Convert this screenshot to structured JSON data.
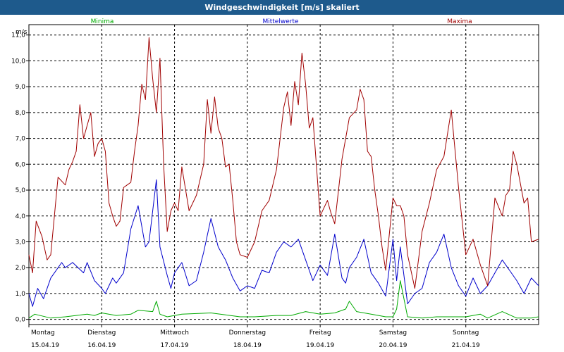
{
  "window": {
    "title": "Windgeschwindigkeit [m/s] skaliert"
  },
  "colors": {
    "titlebar": "#1e5a8c",
    "min": "#00aa00",
    "mean": "#0000cc",
    "max": "#a00000",
    "grid": "#000000"
  },
  "chart_data": {
    "type": "line",
    "title": "Windgeschwindigkeit [m/s] skaliert",
    "ylabel": "m/s",
    "ylim": [
      -0.2,
      11.4
    ],
    "xlim": [
      0,
      7
    ],
    "yticks": [
      0,
      1,
      2,
      3,
      4,
      5,
      6,
      7,
      8,
      9,
      10,
      11
    ],
    "ytick_labels": [
      "0,0",
      "1,0",
      "2,0",
      "3,0",
      "4,0",
      "5,0",
      "6,0",
      "7,0",
      "8,0",
      "9,0",
      "10,0",
      "11,0"
    ],
    "xticks": [
      {
        "day": "Montag",
        "date": "15.04.19"
      },
      {
        "day": "Dienstag",
        "date": "16.04.19"
      },
      {
        "day": "Mittwoch",
        "date": "17.04.19"
      },
      {
        "day": "Donnerstag",
        "date": "18.04.19"
      },
      {
        "day": "Freitag",
        "date": "19.04.19"
      },
      {
        "day": "Samstag",
        "date": "20.04.19"
      },
      {
        "day": "Sonntag",
        "date": "21.04.19"
      }
    ],
    "grid": true,
    "legend_position": "top",
    "series": [
      {
        "name": "Minima",
        "color": "#00aa00",
        "x": [
          0,
          0.08,
          0.3,
          0.5,
          0.8,
          0.9,
          1.0,
          1.2,
          1.4,
          1.5,
          1.7,
          1.75,
          1.8,
          1.9,
          2.1,
          2.5,
          2.9,
          3.1,
          3.4,
          3.6,
          3.8,
          4.0,
          4.2,
          4.35,
          4.4,
          4.5,
          4.7,
          4.9,
          5.0,
          5.05,
          5.1,
          5.2,
          5.4,
          5.6,
          6.0,
          6.2,
          6.3,
          6.5,
          6.7,
          6.9,
          7.0
        ],
        "y": [
          0.05,
          0.2,
          0.05,
          0.1,
          0.2,
          0.15,
          0.25,
          0.15,
          0.2,
          0.35,
          0.3,
          0.7,
          0.2,
          0.1,
          0.2,
          0.25,
          0.1,
          0.1,
          0.15,
          0.15,
          0.3,
          0.2,
          0.25,
          0.4,
          0.7,
          0.3,
          0.2,
          0.1,
          0.1,
          0.4,
          1.5,
          0.1,
          0.05,
          0.1,
          0.1,
          0.2,
          0.05,
          0.3,
          0.05,
          0.05,
          0.1
        ]
      },
      {
        "name": "Mittelwerte",
        "color": "#0000cc",
        "x": [
          0,
          0.05,
          0.12,
          0.2,
          0.3,
          0.35,
          0.45,
          0.5,
          0.6,
          0.75,
          0.8,
          0.9,
          1.0,
          1.05,
          1.15,
          1.2,
          1.3,
          1.4,
          1.5,
          1.6,
          1.65,
          1.75,
          1.8,
          1.9,
          1.95,
          2.0,
          2.1,
          2.2,
          2.3,
          2.4,
          2.5,
          2.6,
          2.7,
          2.8,
          2.9,
          3.0,
          3.1,
          3.2,
          3.3,
          3.4,
          3.5,
          3.6,
          3.7,
          3.8,
          3.9,
          4.0,
          4.1,
          4.2,
          4.3,
          4.35,
          4.4,
          4.5,
          4.6,
          4.7,
          4.8,
          4.9,
          5.0,
          5.05,
          5.1,
          5.2,
          5.3,
          5.4,
          5.5,
          5.6,
          5.7,
          5.8,
          5.9,
          6.0,
          6.1,
          6.2,
          6.3,
          6.4,
          6.5,
          6.6,
          6.7,
          6.8,
          6.9,
          7.0
        ],
        "y": [
          1.0,
          0.5,
          1.2,
          0.8,
          1.6,
          1.8,
          2.2,
          2.0,
          2.2,
          1.8,
          2.2,
          1.5,
          1.2,
          1.0,
          1.6,
          1.4,
          1.8,
          3.5,
          4.4,
          2.8,
          3.0,
          5.4,
          2.8,
          1.7,
          1.2,
          1.8,
          2.2,
          1.3,
          1.5,
          2.6,
          3.9,
          2.8,
          2.3,
          1.6,
          1.1,
          1.3,
          1.2,
          1.9,
          1.8,
          2.6,
          3.0,
          2.8,
          3.1,
          2.3,
          1.5,
          2.1,
          1.7,
          3.3,
          1.6,
          1.4,
          2.0,
          2.4,
          3.1,
          1.8,
          1.4,
          0.9,
          3.1,
          1.5,
          2.8,
          0.6,
          1.0,
          1.2,
          2.2,
          2.6,
          3.3,
          2.0,
          1.3,
          0.9,
          1.6,
          1.0,
          1.3,
          1.8,
          2.3,
          1.9,
          1.5,
          1.0,
          1.6,
          1.3
        ]
      },
      {
        "name": "Maxima",
        "color": "#a00000",
        "x": [
          0,
          0.05,
          0.1,
          0.18,
          0.25,
          0.3,
          0.4,
          0.5,
          0.55,
          0.6,
          0.65,
          0.7,
          0.75,
          0.8,
          0.85,
          0.9,
          0.95,
          1.0,
          1.05,
          1.1,
          1.15,
          1.2,
          1.25,
          1.3,
          1.35,
          1.4,
          1.45,
          1.5,
          1.55,
          1.6,
          1.65,
          1.7,
          1.75,
          1.8,
          1.85,
          1.9,
          1.95,
          2.0,
          2.05,
          2.1,
          2.2,
          2.3,
          2.4,
          2.45,
          2.5,
          2.55,
          2.6,
          2.65,
          2.7,
          2.75,
          2.8,
          2.85,
          2.9,
          3.0,
          3.1,
          3.2,
          3.3,
          3.4,
          3.5,
          3.55,
          3.6,
          3.65,
          3.7,
          3.75,
          3.8,
          3.85,
          3.9,
          4.0,
          4.05,
          4.1,
          4.15,
          4.2,
          4.3,
          4.4,
          4.5,
          4.55,
          4.6,
          4.65,
          4.7,
          4.75,
          4.8,
          4.85,
          4.9,
          5.0,
          5.05,
          5.1,
          5.15,
          5.2,
          5.3,
          5.4,
          5.5,
          5.6,
          5.7,
          5.8,
          5.9,
          6.0,
          6.1,
          6.2,
          6.3,
          6.4,
          6.5,
          6.55,
          6.6,
          6.65,
          6.7,
          6.8,
          6.85,
          6.9,
          7.0
        ],
        "y": [
          2.5,
          1.8,
          3.8,
          3.2,
          2.3,
          2.5,
          5.5,
          5.2,
          5.8,
          6.1,
          6.5,
          8.3,
          7.0,
          7.5,
          8.0,
          6.3,
          6.8,
          7.0,
          6.5,
          4.5,
          4.0,
          3.6,
          3.8,
          5.1,
          5.2,
          5.3,
          6.5,
          7.5,
          9.1,
          8.5,
          10.9,
          9.3,
          8.0,
          10.1,
          6.0,
          3.4,
          4.2,
          4.5,
          4.2,
          5.9,
          4.2,
          4.8,
          6.0,
          8.5,
          7.2,
          8.6,
          7.4,
          7.0,
          5.9,
          6.0,
          4.6,
          3.0,
          2.5,
          2.4,
          3.0,
          4.2,
          4.6,
          5.8,
          8.2,
          8.8,
          7.5,
          9.2,
          8.3,
          10.3,
          9.1,
          7.4,
          7.8,
          4.0,
          4.3,
          4.6,
          4.1,
          3.7,
          6.2,
          7.8,
          8.1,
          8.9,
          8.5,
          6.5,
          6.3,
          5.0,
          4.0,
          2.8,
          1.9,
          4.7,
          4.4,
          4.4,
          4.0,
          2.5,
          1.2,
          3.4,
          4.5,
          5.8,
          6.3,
          8.1,
          5.1,
          2.5,
          3.1,
          2.1,
          1.3,
          4.7,
          4.0,
          4.8,
          5.0,
          6.5,
          6.0,
          4.5,
          4.7,
          3.0,
          3.1
        ]
      }
    ]
  }
}
